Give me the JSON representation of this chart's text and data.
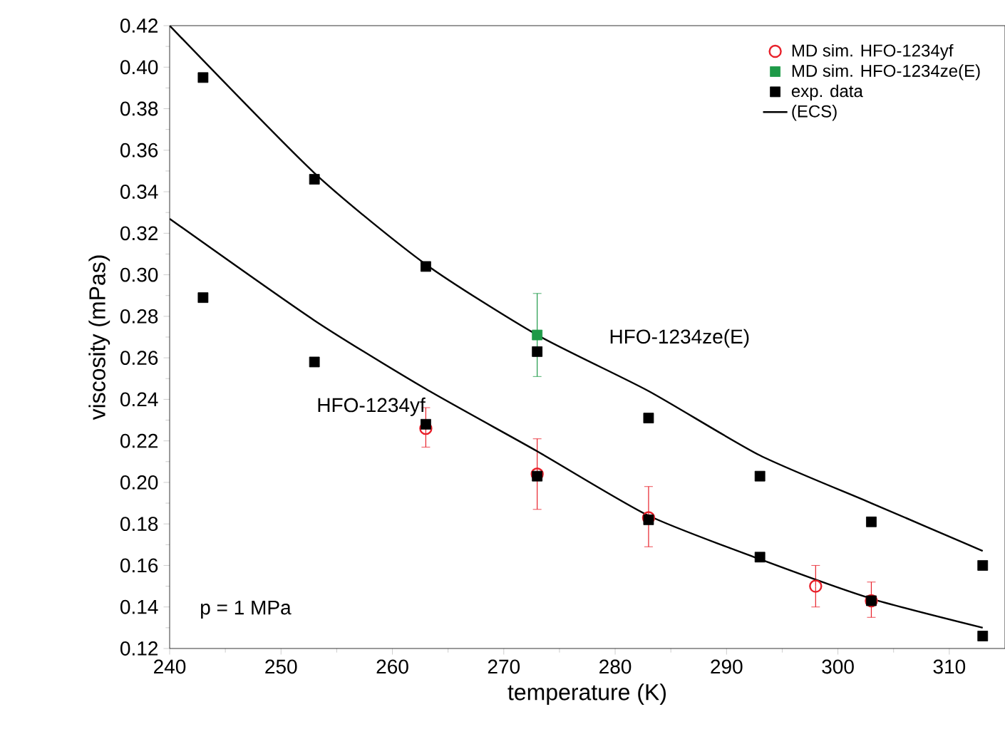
{
  "chart_data": {
    "type": "scatter",
    "xlabel": "temperature (K)",
    "ylabel": "viscosity (mPas)",
    "xlim": [
      240,
      315
    ],
    "xticks": [
      240,
      250,
      260,
      270,
      280,
      290,
      300,
      310
    ],
    "ylim": [
      0.12,
      0.42
    ],
    "yticks": [
      0.12,
      0.14,
      0.16,
      0.18,
      {
        "value": 0.2,
        "label": "0.20"
      },
      0.22,
      0.24,
      0.26,
      0.28,
      {
        "value": 0.3,
        "label": "0.30"
      },
      0.32,
      0.34,
      0.36,
      0.38,
      {
        "value": 0.4,
        "label": "0.40"
      },
      0.42
    ],
    "legend": "top right",
    "grid": false,
    "series": [
      {
        "name": "MD sim. HFO-1234yf",
        "marker": "circle",
        "color": "#e8202a",
        "x": [
          263,
          273,
          283,
          298,
          303
        ],
        "values": [
          0.226,
          0.204,
          0.183,
          0.15,
          0.143
        ],
        "errors": [
          [
            0.217,
            0.236
          ],
          [
            0.187,
            0.221
          ],
          [
            0.169,
            0.198
          ],
          [
            0.14,
            0.16
          ],
          [
            0.135,
            0.152
          ]
        ]
      },
      {
        "name": "MD sim. HFO-1234ze(E)",
        "marker": "square",
        "color": "#1e9a48",
        "x": [
          273
        ],
        "values": [
          0.271
        ],
        "errors": [
          [
            0.251,
            0.291
          ]
        ]
      },
      {
        "name": "exp. data",
        "marker": "square",
        "color": "#000000",
        "x": [
          243,
          253,
          263,
          273,
          283,
          293,
          303,
          313
        ],
        "values": [
          0.395,
          0.346,
          0.304,
          0.263,
          0.231,
          0.203,
          0.181,
          0.16
        ]
      },
      {
        "marker": "square",
        "color": "#000000",
        "x": [
          243,
          253,
          263,
          273,
          283,
          293,
          303,
          313
        ],
        "values": [
          0.289,
          0.258,
          0.228,
          0.203,
          0.182,
          0.164,
          0.143,
          0.126
        ]
      },
      {
        "name": "(ECS)",
        "type": "line",
        "marker": "none",
        "color": "#000000",
        "x": [
          240,
          253,
          263,
          273,
          283,
          293,
          303,
          313
        ],
        "values": [
          0.42,
          0.349,
          0.305,
          0.271,
          0.244,
          0.213,
          0.19,
          0.167
        ]
      },
      {
        "type": "line",
        "marker": "none",
        "color": "#000000",
        "x": [
          240,
          253,
          263,
          273,
          283,
          293,
          303,
          313
        ],
        "values": [
          0.327,
          0.278,
          0.245,
          0.215,
          0.184,
          0.163,
          0.144,
          0.13
        ]
      }
    ],
    "annotations": [
      "HFO-1234yf",
      "HFO-1234ze(E)",
      "p = 1 MPa"
    ]
  }
}
